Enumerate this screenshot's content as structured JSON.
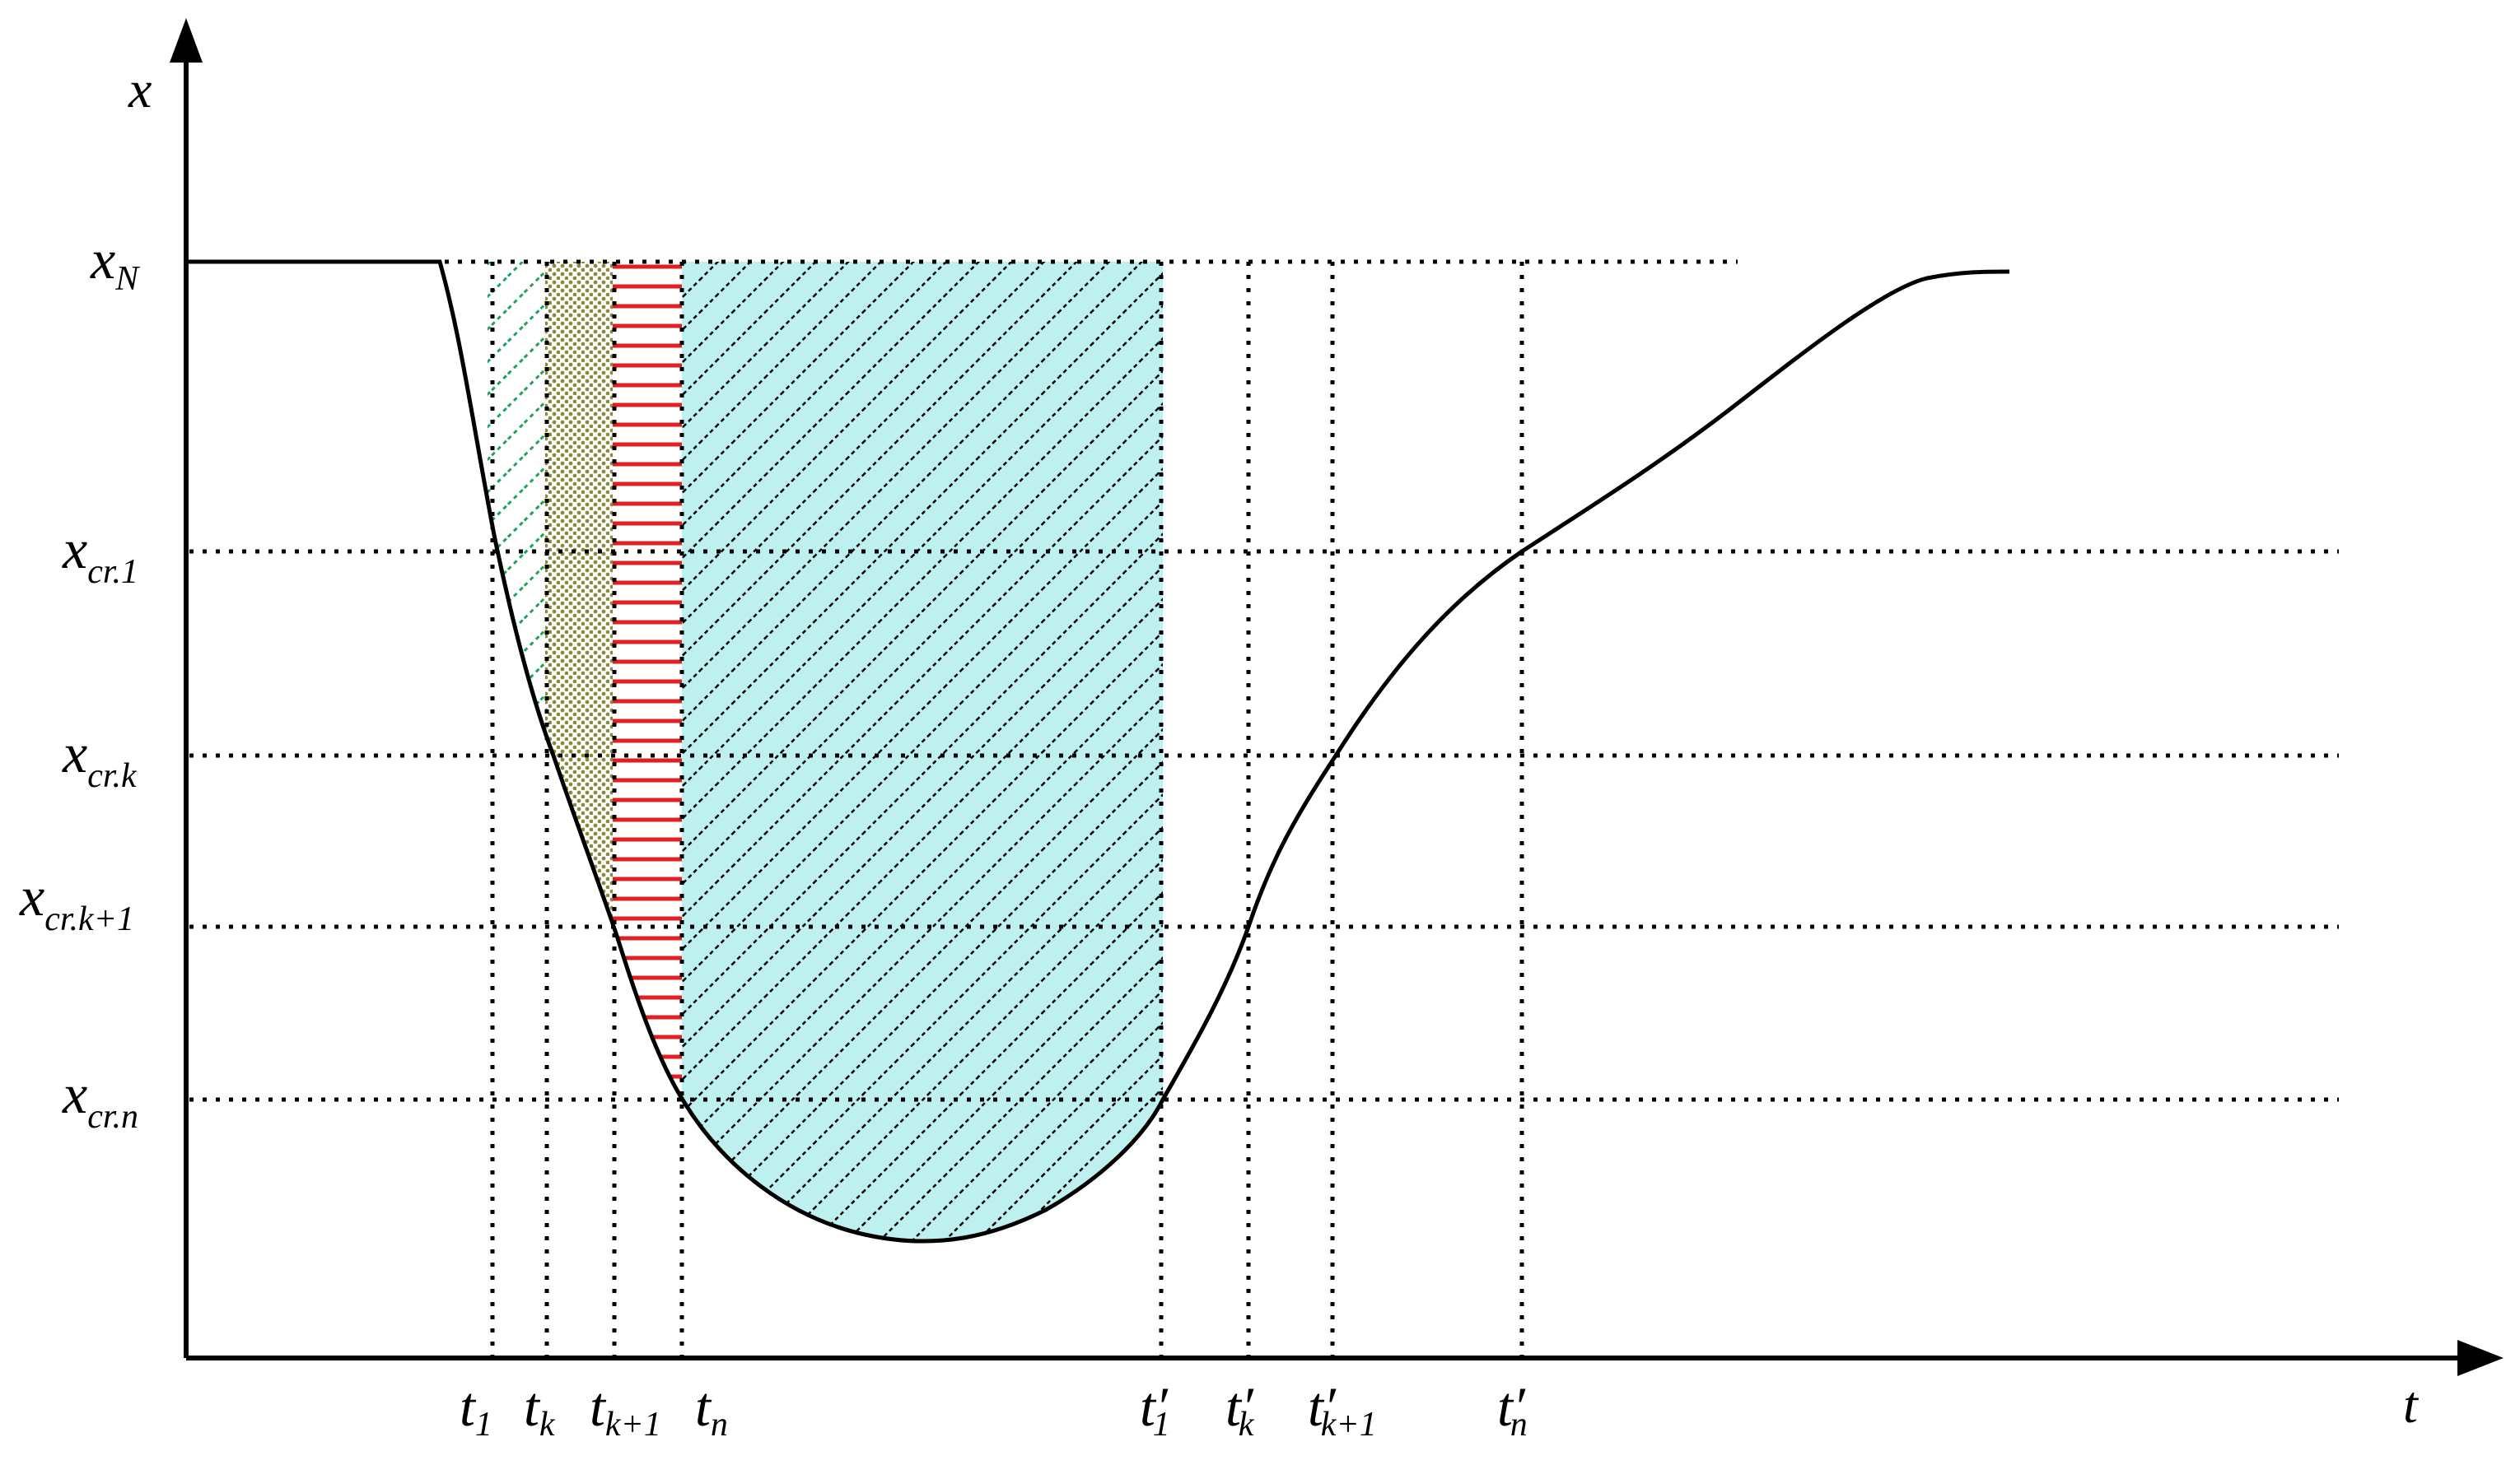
{
  "axes": {
    "x_label": "t",
    "y_label": "x"
  },
  "y_levels": [
    {
      "id": "xN",
      "main": "x",
      "sub": "N"
    },
    {
      "id": "xcr1",
      "main": "x",
      "sub": "cr.1"
    },
    {
      "id": "xcrk",
      "main": "x",
      "sub": "cr.k"
    },
    {
      "id": "xcrk1",
      "main": "x",
      "sub": "cr.k+1"
    },
    {
      "id": "xcrn",
      "main": "x",
      "sub": "cr.n"
    }
  ],
  "t_marks": [
    {
      "id": "t1",
      "main": "t",
      "sub": "1",
      "prime": ""
    },
    {
      "id": "tk",
      "main": "t",
      "sub": "k",
      "prime": ""
    },
    {
      "id": "tk1",
      "main": "t",
      "sub": "k+1",
      "prime": ""
    },
    {
      "id": "tn",
      "main": "t",
      "sub": "n",
      "prime": ""
    },
    {
      "id": "t1p",
      "main": "t",
      "sub": "1",
      "prime": "′"
    },
    {
      "id": "tkp",
      "main": "t",
      "sub": "k",
      "prime": "′"
    },
    {
      "id": "tk1p",
      "main": "t",
      "sub": "k+1",
      "prime": "′"
    },
    {
      "id": "tnp",
      "main": "t",
      "sub": "n",
      "prime": "′"
    }
  ],
  "regions": [
    {
      "id": "t1-tk",
      "pattern": "green-diagonal",
      "color": "#21a35a"
    },
    {
      "id": "tk-tk1",
      "pattern": "olive-dots",
      "color": "#8a8a3c"
    },
    {
      "id": "tk1-tn",
      "pattern": "red-horizontal",
      "color": "#e02020"
    },
    {
      "id": "tn-t1p",
      "pattern": "black-diagonal-on-cyan",
      "color": "#bff0f0"
    }
  ],
  "colors": {
    "curve": "#000000",
    "grid": "#000000",
    "green": "#21a35a",
    "olive": "#8a8a3c",
    "red": "#e02020",
    "cyan": "#bff0f0"
  }
}
